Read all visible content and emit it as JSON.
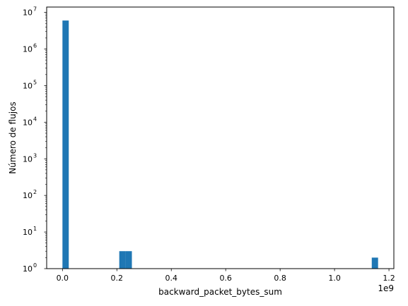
{
  "chart_data": {
    "type": "bar",
    "subtype": "histogram",
    "xlabel": "backward_packet_bytes_sum",
    "ylabel": "Número de flujos",
    "x_offset_label": "1e9",
    "yscale": "log",
    "ylim": [
      1,
      14000000
    ],
    "xlim": [
      -0.058,
      1.218
    ],
    "bin_width": 0.0232,
    "bars": [
      {
        "x0": 0.0,
        "count": 6000000
      },
      {
        "x0": 0.2088,
        "count": 3
      },
      {
        "x0": 0.232,
        "count": 3
      },
      {
        "x0": 1.1368,
        "count": 2
      }
    ],
    "x_ticks": [
      {
        "value": 0.0,
        "label": "0.0"
      },
      {
        "value": 0.2,
        "label": "0.2"
      },
      {
        "value": 0.4,
        "label": "0.4"
      },
      {
        "value": 0.6,
        "label": "0.6"
      },
      {
        "value": 0.8,
        "label": "0.8"
      },
      {
        "value": 1.0,
        "label": "1.0"
      },
      {
        "value": 1.2,
        "label": "1.2"
      }
    ],
    "y_ticks": [
      {
        "exp": "0"
      },
      {
        "exp": "1"
      },
      {
        "exp": "2"
      },
      {
        "exp": "3"
      },
      {
        "exp": "4"
      },
      {
        "exp": "5"
      },
      {
        "exp": "6"
      },
      {
        "exp": "7"
      }
    ],
    "bar_color": "#1f77b4",
    "grid": false
  }
}
